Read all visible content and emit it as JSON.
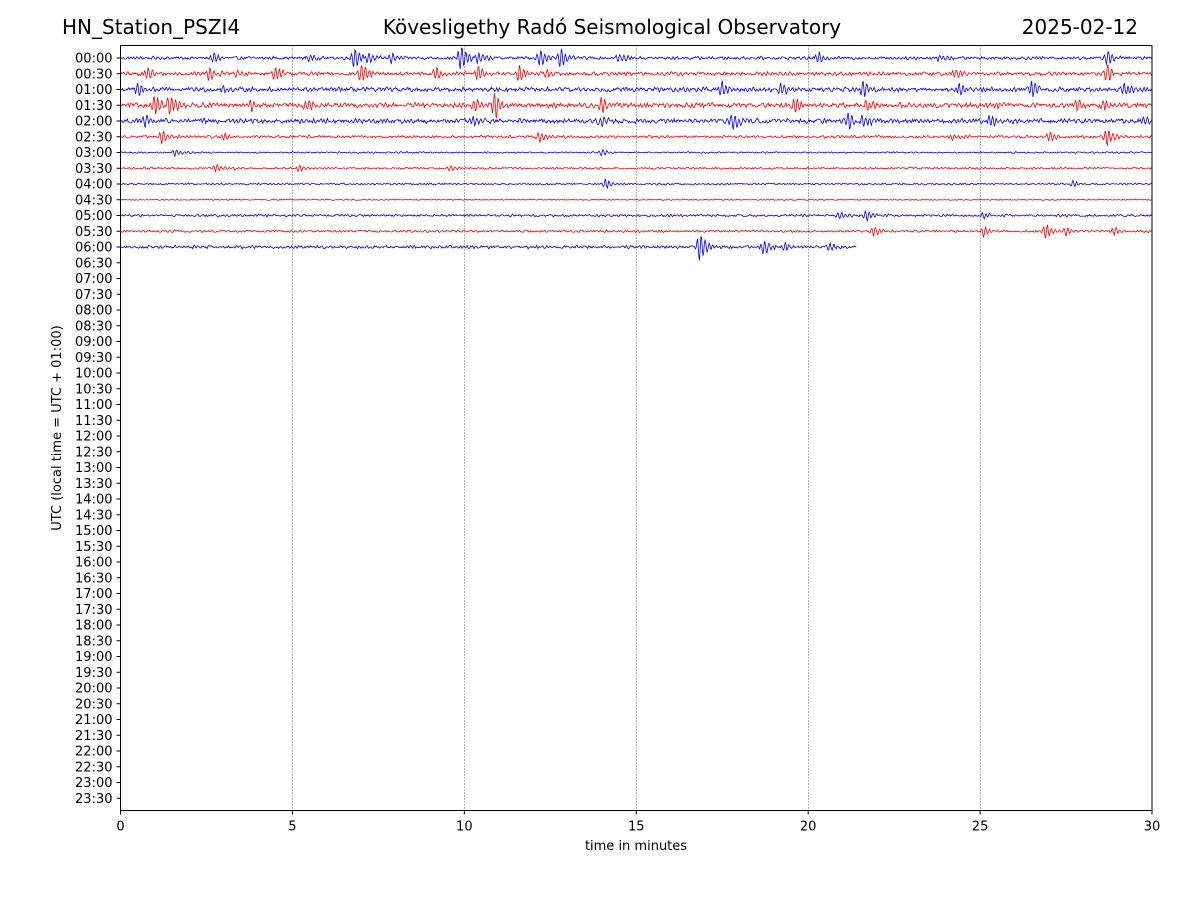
{
  "header": {
    "station": "HN_Station_PSZI4",
    "observatory": "Kövesligethy Radó Seismological Observatory",
    "date": "2025-02-12"
  },
  "chart_data": {
    "type": "line",
    "title": "Kövesligethy Radó Seismological Observatory",
    "xlabel": "time in minutes",
    "ylabel": "UTC (local time = UTC + 01:00)",
    "xlim": [
      0,
      30
    ],
    "x_ticks": [
      0,
      5,
      10,
      15,
      20,
      25,
      30
    ],
    "x_gridlines": [
      5,
      10,
      15,
      20,
      25
    ],
    "grid": "dotted vertical",
    "row_labels": [
      "00:00",
      "00:30",
      "01:00",
      "01:30",
      "02:00",
      "02:30",
      "03:00",
      "03:30",
      "04:00",
      "04:30",
      "05:00",
      "05:30",
      "06:00",
      "06:30",
      "07:00",
      "07:30",
      "08:00",
      "08:30",
      "09:00",
      "09:30",
      "10:00",
      "10:30",
      "11:00",
      "11:30",
      "12:00",
      "12:30",
      "13:00",
      "13:30",
      "14:00",
      "14:30",
      "15:00",
      "15:30",
      "16:00",
      "16:30",
      "17:00",
      "17:30",
      "18:00",
      "18:30",
      "19:00",
      "19:30",
      "20:00",
      "20:30",
      "21:00",
      "21:30",
      "22:00",
      "22:30",
      "23:00",
      "23:30"
    ],
    "colors": [
      "#0000ff",
      "#ff0000"
    ],
    "traces": [
      {
        "row": "00:00",
        "color": "#0000ff",
        "end_minute": 30,
        "noise": 0.9,
        "events": [
          [
            2.7,
            2.2
          ],
          [
            5.5,
            2.0
          ],
          [
            6.8,
            5.0
          ],
          [
            7.2,
            3.5
          ],
          [
            7.9,
            2.5
          ],
          [
            9.9,
            6.0
          ],
          [
            10.4,
            3.0
          ],
          [
            12.2,
            4.0
          ],
          [
            12.8,
            5.0
          ],
          [
            14.5,
            2.0
          ],
          [
            20.3,
            3.0
          ],
          [
            23.8,
            1.8
          ],
          [
            28.7,
            4.0
          ]
        ]
      },
      {
        "row": "00:30",
        "color": "#ff0000",
        "end_minute": 30,
        "noise": 1.1,
        "events": [
          [
            0.8,
            3.0
          ],
          [
            2.6,
            3.5
          ],
          [
            3.4,
            2.0
          ],
          [
            4.5,
            3.5
          ],
          [
            7.0,
            4.5
          ],
          [
            9.2,
            3.0
          ],
          [
            10.4,
            3.5
          ],
          [
            11.6,
            3.5
          ],
          [
            12.4,
            2.0
          ],
          [
            24.3,
            2.0
          ],
          [
            28.7,
            4.0
          ]
        ]
      },
      {
        "row": "01:00",
        "color": "#0000ff",
        "end_minute": 30,
        "noise": 1.3,
        "events": [
          [
            0.5,
            3.0
          ],
          [
            3.0,
            2.0
          ],
          [
            17.5,
            3.5
          ],
          [
            19.2,
            3.0
          ],
          [
            21.6,
            4.5
          ],
          [
            24.4,
            3.0
          ],
          [
            26.5,
            3.5
          ],
          [
            29.2,
            3.0
          ]
        ]
      },
      {
        "row": "01:30",
        "color": "#ff0000",
        "end_minute": 30,
        "noise": 1.4,
        "events": [
          [
            1.0,
            4.5
          ],
          [
            1.4,
            5.5
          ],
          [
            3.8,
            2.5
          ],
          [
            5.4,
            3.0
          ],
          [
            10.3,
            3.0
          ],
          [
            10.9,
            6.5
          ],
          [
            14.0,
            4.0
          ],
          [
            19.6,
            3.5
          ],
          [
            21.7,
            3.0
          ],
          [
            25.5,
            2.5
          ],
          [
            27.8,
            2.5
          ],
          [
            28.6,
            3.0
          ]
        ]
      },
      {
        "row": "02:00",
        "color": "#0000ff",
        "end_minute": 30,
        "noise": 1.4,
        "events": [
          [
            0.7,
            2.5
          ],
          [
            10.3,
            3.0
          ],
          [
            14.0,
            2.5
          ],
          [
            17.8,
            4.5
          ],
          [
            21.2,
            4.0
          ],
          [
            21.6,
            3.5
          ],
          [
            25.3,
            2.5
          ],
          [
            29.8,
            2.5
          ]
        ]
      },
      {
        "row": "02:30",
        "color": "#ff0000",
        "end_minute": 30,
        "noise": 0.8,
        "events": [
          [
            1.2,
            3.0
          ],
          [
            3.0,
            1.8
          ],
          [
            12.2,
            2.5
          ],
          [
            24.2,
            2.0
          ],
          [
            27.0,
            2.5
          ],
          [
            28.7,
            4.0
          ]
        ]
      },
      {
        "row": "03:00",
        "color": "#0000ff",
        "end_minute": 30,
        "noise": 0.45,
        "events": [
          [
            1.6,
            1.8
          ],
          [
            14.0,
            1.5
          ]
        ]
      },
      {
        "row": "03:30",
        "color": "#ff0000",
        "end_minute": 30,
        "noise": 0.6,
        "events": [
          [
            2.8,
            2.0
          ],
          [
            5.2,
            1.8
          ],
          [
            9.6,
            1.5
          ]
        ]
      },
      {
        "row": "04:00",
        "color": "#0000ff",
        "end_minute": 30,
        "noise": 0.55,
        "events": [
          [
            14.1,
            2.5
          ],
          [
            27.7,
            1.5
          ]
        ]
      },
      {
        "row": "04:30",
        "color": "#ff0000",
        "end_minute": 30,
        "noise": 0.35,
        "events": []
      },
      {
        "row": "05:00",
        "color": "#0000ff",
        "end_minute": 30,
        "noise": 0.7,
        "events": [
          [
            20.9,
            2.0
          ],
          [
            21.7,
            2.5
          ],
          [
            25.1,
            1.5
          ]
        ]
      },
      {
        "row": "05:30",
        "color": "#ff0000",
        "end_minute": 30,
        "noise": 0.7,
        "events": [
          [
            21.9,
            2.5
          ],
          [
            25.1,
            2.5
          ],
          [
            26.9,
            3.5
          ],
          [
            27.5,
            2.0
          ],
          [
            28.9,
            1.8
          ]
        ]
      },
      {
        "row": "06:00",
        "color": "#0000ff",
        "end_minute": 21.4,
        "noise": 0.9,
        "events": [
          [
            16.85,
            7.0
          ],
          [
            18.7,
            3.5
          ],
          [
            19.3,
            2.0
          ],
          [
            20.6,
            1.8
          ]
        ]
      }
    ]
  }
}
